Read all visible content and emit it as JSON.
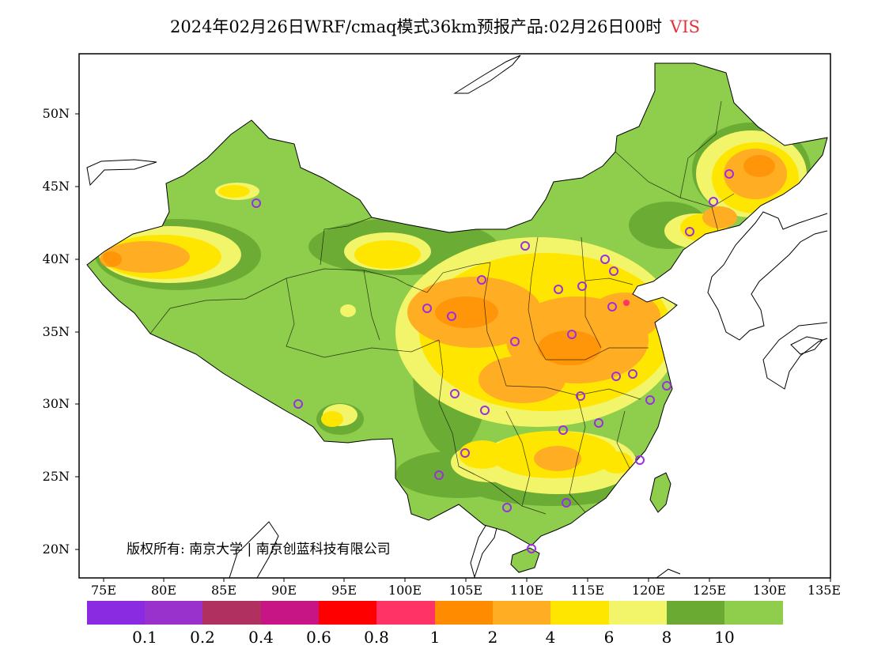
{
  "title": {
    "main": "2024年02月26日WRF/cmaq模式36km预报产品:02月26日00时",
    "variable": "VIS"
  },
  "map": {
    "lat_ticks": [
      "50N",
      "45N",
      "40N",
      "35N",
      "30N",
      "25N",
      "20N"
    ],
    "lon_ticks": [
      "75E",
      "80E",
      "85E",
      "90E",
      "95E",
      "100E",
      "105E",
      "110E",
      "115E",
      "120E",
      "125E",
      "130E",
      "135E"
    ],
    "copyright": "版权所有: 南京大学 | 南京创蓝科技有限公司",
    "colors": {
      "frame": "#000000",
      "sea": "#ffffff",
      "boundary": "#000000",
      "city_marker": "#9b2fe0"
    }
  },
  "legend": {
    "bins": [
      {
        "color": "#8a2be2"
      },
      {
        "color": "#9932cc"
      },
      {
        "color": "#b03060"
      },
      {
        "color": "#c71585"
      },
      {
        "color": "#ff0000"
      },
      {
        "color": "#ff3366"
      },
      {
        "color": "#ff8c00"
      },
      {
        "color": "#ffad22"
      },
      {
        "color": "#ffe600"
      },
      {
        "color": "#f2f56a"
      },
      {
        "color": "#6aaa33"
      },
      {
        "color": "#8ece4c"
      }
    ],
    "labels": [
      "0.1",
      "0.2",
      "0.4",
      "0.6",
      "0.8",
      "1",
      "2",
      "4",
      "6",
      "8",
      "10"
    ]
  }
}
